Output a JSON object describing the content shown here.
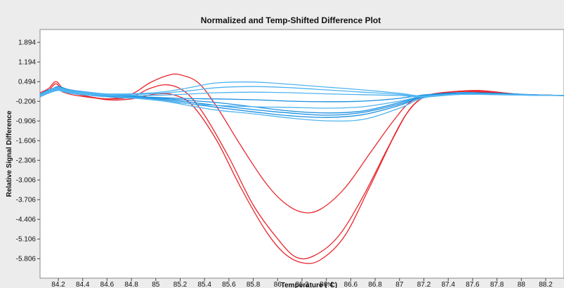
{
  "chart_data": {
    "type": "line",
    "title": "Normalized and Temp-Shifted Difference Plot",
    "xlabel": "Temperature (°C)",
    "ylabel": "Relative Signal Difference",
    "xlim": [
      84.05,
      88.35
    ],
    "ylim": [
      -6.5,
      2.35
    ],
    "xticks": [
      "84.2",
      "84.4",
      "84.6",
      "84.8",
      "85",
      "85.2",
      "85.4",
      "85.6",
      "85.8",
      "86",
      "86.2",
      "86.4",
      "86.6",
      "86.8",
      "87",
      "87.2",
      "87.4",
      "87.6",
      "87.8",
      "88",
      "88.2"
    ],
    "yticks": [
      "1.894",
      "1.194",
      "0.494",
      "-0.206",
      "-0.906",
      "-1.606",
      "-2.306",
      "-3.006",
      "-3.706",
      "-4.406",
      "-5.106",
      "-5.806"
    ],
    "grid": false,
    "legend": "none",
    "colors": {
      "red": "#e8262c",
      "blue": "#1a8fe0",
      "light_blue": "#4fb4f0"
    },
    "series": [
      {
        "color": "red",
        "points": [
          [
            84.05,
            0.02
          ],
          [
            84.12,
            0.18
          ],
          [
            84.18,
            0.42
          ],
          [
            84.24,
            0.18
          ],
          [
            84.35,
            0.05
          ],
          [
            84.6,
            -0.15
          ],
          [
            84.8,
            -0.12
          ],
          [
            85.0,
            0.05
          ],
          [
            85.15,
            0.02
          ],
          [
            85.3,
            -0.35
          ],
          [
            85.5,
            -1.6
          ],
          [
            85.7,
            -3.3
          ],
          [
            85.9,
            -4.8
          ],
          [
            86.05,
            -5.6
          ],
          [
            86.2,
            -5.95
          ],
          [
            86.35,
            -5.85
          ],
          [
            86.55,
            -5.0
          ],
          [
            86.75,
            -3.3
          ],
          [
            86.95,
            -1.5
          ],
          [
            87.1,
            -0.4
          ],
          [
            87.25,
            0.02
          ],
          [
            87.45,
            0.14
          ],
          [
            87.65,
            0.18
          ],
          [
            87.85,
            0.1
          ],
          [
            88.0,
            0.04
          ],
          [
            88.35,
            0.0
          ]
        ]
      },
      {
        "color": "red",
        "points": [
          [
            84.05,
            -0.05
          ],
          [
            84.12,
            0.12
          ],
          [
            84.18,
            0.28
          ],
          [
            84.24,
            0.12
          ],
          [
            84.35,
            0.0
          ],
          [
            84.6,
            -0.12
          ],
          [
            84.8,
            -0.05
          ],
          [
            84.95,
            0.25
          ],
          [
            85.1,
            0.38
          ],
          [
            85.25,
            0.1
          ],
          [
            85.4,
            -0.7
          ],
          [
            85.6,
            -2.2
          ],
          [
            85.8,
            -3.9
          ],
          [
            86.0,
            -5.1
          ],
          [
            86.15,
            -5.75
          ],
          [
            86.3,
            -5.7
          ],
          [
            86.5,
            -5.0
          ],
          [
            86.7,
            -3.6
          ],
          [
            86.9,
            -1.9
          ],
          [
            87.05,
            -0.7
          ],
          [
            87.2,
            -0.05
          ],
          [
            87.4,
            0.12
          ],
          [
            87.6,
            0.16
          ],
          [
            87.8,
            0.1
          ],
          [
            88.0,
            0.04
          ],
          [
            88.35,
            0.0
          ]
        ]
      },
      {
        "color": "red",
        "points": [
          [
            84.05,
            0.1
          ],
          [
            84.12,
            0.25
          ],
          [
            84.18,
            0.5
          ],
          [
            84.24,
            0.25
          ],
          [
            84.35,
            0.06
          ],
          [
            84.6,
            -0.12
          ],
          [
            84.8,
            0.05
          ],
          [
            84.95,
            0.45
          ],
          [
            85.1,
            0.72
          ],
          [
            85.2,
            0.74
          ],
          [
            85.35,
            0.45
          ],
          [
            85.5,
            -0.4
          ],
          [
            85.7,
            -1.8
          ],
          [
            85.9,
            -3.1
          ],
          [
            86.05,
            -3.8
          ],
          [
            86.2,
            -4.15
          ],
          [
            86.35,
            -4.05
          ],
          [
            86.55,
            -3.3
          ],
          [
            86.75,
            -2.1
          ],
          [
            86.95,
            -0.9
          ],
          [
            87.1,
            -0.2
          ],
          [
            87.3,
            0.05
          ],
          [
            87.5,
            0.14
          ],
          [
            87.7,
            0.12
          ],
          [
            87.9,
            0.05
          ],
          [
            88.35,
            0.0
          ]
        ]
      },
      {
        "color": "blue",
        "points": [
          [
            84.05,
            0.0
          ],
          [
            84.12,
            0.15
          ],
          [
            84.2,
            0.32
          ],
          [
            84.3,
            0.2
          ],
          [
            84.6,
            0.05
          ],
          [
            84.9,
            -0.05
          ],
          [
            85.2,
            -0.15
          ],
          [
            85.5,
            -0.25
          ],
          [
            85.8,
            -0.4
          ],
          [
            86.1,
            -0.55
          ],
          [
            86.4,
            -0.62
          ],
          [
            86.7,
            -0.55
          ],
          [
            87.0,
            -0.25
          ],
          [
            87.2,
            0.0
          ],
          [
            87.5,
            0.1
          ],
          [
            87.8,
            0.08
          ],
          [
            88.1,
            0.03
          ],
          [
            88.35,
            0.0
          ]
        ]
      },
      {
        "color": "blue",
        "points": [
          [
            84.05,
            0.05
          ],
          [
            84.12,
            0.2
          ],
          [
            84.2,
            0.28
          ],
          [
            84.3,
            0.18
          ],
          [
            84.6,
            0.02
          ],
          [
            84.9,
            -0.08
          ],
          [
            85.2,
            -0.2
          ],
          [
            85.5,
            -0.35
          ],
          [
            85.8,
            -0.5
          ],
          [
            86.1,
            -0.62
          ],
          [
            86.4,
            -0.7
          ],
          [
            86.7,
            -0.6
          ],
          [
            87.0,
            -0.3
          ],
          [
            87.2,
            -0.02
          ],
          [
            87.5,
            0.08
          ],
          [
            87.8,
            0.06
          ],
          [
            88.1,
            0.02
          ],
          [
            88.35,
            0.0
          ]
        ]
      },
      {
        "color": "blue",
        "points": [
          [
            84.05,
            -0.05
          ],
          [
            84.12,
            0.1
          ],
          [
            84.2,
            0.22
          ],
          [
            84.3,
            0.12
          ],
          [
            84.6,
            -0.02
          ],
          [
            84.9,
            -0.12
          ],
          [
            85.2,
            -0.25
          ],
          [
            85.5,
            -0.42
          ],
          [
            85.8,
            -0.58
          ],
          [
            86.1,
            -0.72
          ],
          [
            86.4,
            -0.78
          ],
          [
            86.7,
            -0.68
          ],
          [
            87.0,
            -0.35
          ],
          [
            87.2,
            -0.05
          ],
          [
            87.5,
            0.06
          ],
          [
            87.8,
            0.05
          ],
          [
            88.1,
            0.02
          ],
          [
            88.35,
            0.0
          ]
        ]
      },
      {
        "color": "blue",
        "points": [
          [
            84.05,
            0.0
          ],
          [
            84.12,
            0.14
          ],
          [
            84.2,
            0.24
          ],
          [
            84.3,
            0.14
          ],
          [
            84.6,
            0.0
          ],
          [
            84.9,
            -0.05
          ],
          [
            85.2,
            -0.1
          ],
          [
            85.5,
            -0.12
          ],
          [
            85.8,
            -0.15
          ],
          [
            86.1,
            -0.2
          ],
          [
            86.4,
            -0.22
          ],
          [
            86.7,
            -0.2
          ],
          [
            87.0,
            -0.1
          ],
          [
            87.2,
            0.02
          ],
          [
            87.5,
            0.1
          ],
          [
            87.8,
            0.07
          ],
          [
            88.1,
            0.02
          ],
          [
            88.35,
            0.0
          ]
        ]
      },
      {
        "color": "light_blue",
        "points": [
          [
            84.05,
            0.02
          ],
          [
            84.12,
            0.18
          ],
          [
            84.2,
            0.28
          ],
          [
            84.3,
            0.18
          ],
          [
            84.6,
            0.06
          ],
          [
            84.9,
            0.08
          ],
          [
            85.1,
            0.15
          ],
          [
            85.3,
            0.3
          ],
          [
            85.5,
            0.45
          ],
          [
            85.8,
            0.48
          ],
          [
            86.1,
            0.4
          ],
          [
            86.4,
            0.3
          ],
          [
            86.7,
            0.2
          ],
          [
            87.0,
            0.08
          ],
          [
            87.2,
            -0.02
          ],
          [
            87.5,
            0.06
          ],
          [
            87.8,
            0.05
          ],
          [
            88.1,
            0.02
          ],
          [
            88.35,
            0.0
          ]
        ]
      },
      {
        "color": "light_blue",
        "points": [
          [
            84.05,
            0.0
          ],
          [
            84.12,
            0.15
          ],
          [
            84.2,
            0.25
          ],
          [
            84.3,
            0.15
          ],
          [
            84.6,
            0.05
          ],
          [
            84.9,
            0.05
          ],
          [
            85.1,
            0.1
          ],
          [
            85.3,
            0.18
          ],
          [
            85.5,
            0.28
          ],
          [
            85.8,
            0.32
          ],
          [
            86.1,
            0.28
          ],
          [
            86.4,
            0.2
          ],
          [
            86.7,
            0.12
          ],
          [
            87.0,
            0.04
          ],
          [
            87.2,
            -0.03
          ],
          [
            87.5,
            0.05
          ],
          [
            87.8,
            0.04
          ],
          [
            88.1,
            0.01
          ],
          [
            88.35,
            0.0
          ]
        ]
      },
      {
        "color": "light_blue",
        "points": [
          [
            84.05,
            -0.02
          ],
          [
            84.12,
            0.12
          ],
          [
            84.2,
            0.22
          ],
          [
            84.3,
            0.12
          ],
          [
            84.6,
            0.03
          ],
          [
            84.9,
            0.0
          ],
          [
            85.1,
            0.02
          ],
          [
            85.3,
            0.06
          ],
          [
            85.5,
            0.1
          ],
          [
            85.8,
            0.12
          ],
          [
            86.1,
            0.1
          ],
          [
            86.4,
            0.06
          ],
          [
            86.7,
            0.03
          ],
          [
            87.0,
            0.0
          ],
          [
            87.2,
            -0.05
          ],
          [
            87.5,
            0.04
          ],
          [
            87.8,
            0.03
          ],
          [
            88.1,
            0.01
          ],
          [
            88.35,
            0.0
          ]
        ]
      },
      {
        "color": "light_blue",
        "points": [
          [
            84.05,
            0.0
          ],
          [
            84.12,
            0.1
          ],
          [
            84.2,
            0.2
          ],
          [
            84.3,
            0.1
          ],
          [
            84.6,
            0.0
          ],
          [
            84.9,
            -0.1
          ],
          [
            85.1,
            -0.2
          ],
          [
            85.3,
            -0.3
          ],
          [
            85.5,
            -0.35
          ],
          [
            85.8,
            -0.4
          ],
          [
            86.1,
            -0.42
          ],
          [
            86.4,
            -0.45
          ],
          [
            86.7,
            -0.4
          ],
          [
            87.0,
            -0.2
          ],
          [
            87.2,
            -0.02
          ],
          [
            87.5,
            0.05
          ],
          [
            87.8,
            0.04
          ],
          [
            88.1,
            0.01
          ],
          [
            88.35,
            0.0
          ]
        ]
      },
      {
        "color": "light_blue",
        "points": [
          [
            84.05,
            -0.05
          ],
          [
            84.12,
            0.08
          ],
          [
            84.2,
            0.18
          ],
          [
            84.3,
            0.08
          ],
          [
            84.6,
            -0.05
          ],
          [
            84.9,
            -0.12
          ],
          [
            85.1,
            -0.22
          ],
          [
            85.3,
            -0.38
          ],
          [
            85.5,
            -0.52
          ],
          [
            85.8,
            -0.65
          ],
          [
            86.1,
            -0.8
          ],
          [
            86.4,
            -0.9
          ],
          [
            86.7,
            -0.85
          ],
          [
            87.0,
            -0.45
          ],
          [
            87.2,
            -0.08
          ],
          [
            87.5,
            0.04
          ],
          [
            87.8,
            0.03
          ],
          [
            88.1,
            0.01
          ],
          [
            88.35,
            0.0
          ]
        ]
      }
    ]
  }
}
